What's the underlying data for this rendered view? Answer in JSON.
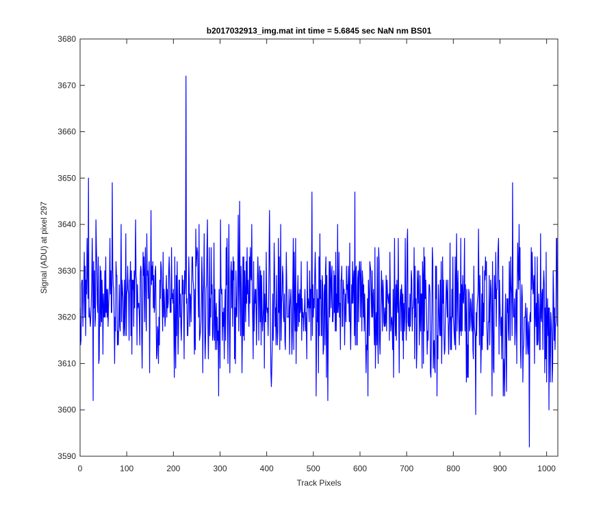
{
  "chart_data": {
    "type": "line",
    "title": "b2017032913_img.mat int time = 5.6845 sec  NaN nm BS01",
    "xlabel": "Track Pixels",
    "ylabel": "Signal (ADU) at pixel 297",
    "xlim": [
      0,
      1024
    ],
    "ylim": [
      3590,
      3680
    ],
    "x_ticks": [
      "0",
      "100",
      "200",
      "300",
      "400",
      "500",
      "600",
      "700",
      "800",
      "900",
      "1000"
    ],
    "y_ticks": [
      "3590",
      "3600",
      "3610",
      "3620",
      "3630",
      "3640",
      "3650",
      "3660",
      "3670",
      "3680"
    ],
    "grid": false,
    "line_color": "#0000ff",
    "series": [
      {
        "n_points": 1024,
        "baseline": 3625,
        "baseline_end": 3621,
        "noise_amplitude": 7,
        "seed": 297,
        "points": [
          [
            0,
            3622
          ],
          [
            2,
            3615
          ],
          [
            4,
            3628
          ],
          [
            6,
            3618
          ],
          [
            8,
            3627
          ],
          [
            10,
            3620
          ],
          [
            14,
            3625
          ],
          [
            18,
            3650
          ],
          [
            20,
            3622
          ],
          [
            22,
            3618
          ],
          [
            26,
            3637
          ],
          [
            28,
            3602
          ],
          [
            31,
            3630
          ],
          [
            34,
            3641
          ],
          [
            38,
            3621
          ],
          [
            41,
            3611
          ],
          [
            45,
            3630
          ],
          [
            50,
            3625
          ],
          [
            55,
            3633
          ],
          [
            60,
            3618
          ],
          [
            64,
            3637
          ],
          [
            69,
            3649
          ],
          [
            72,
            3626
          ],
          [
            77,
            3632
          ],
          [
            83,
            3620
          ],
          [
            88,
            3640
          ],
          [
            93,
            3616
          ],
          [
            100,
            3625
          ],
          [
            108,
            3632
          ],
          [
            115,
            3618
          ],
          [
            119,
            3641
          ],
          [
            125,
            3623
          ],
          [
            131,
            3630
          ],
          [
            138,
            3619
          ],
          [
            143,
            3638
          ],
          [
            150,
            3624
          ],
          [
            156,
            3632
          ],
          [
            163,
            3620
          ],
          [
            168,
            3610
          ],
          [
            175,
            3628
          ],
          [
            182,
            3618
          ],
          [
            190,
            3630
          ],
          [
            199,
            3623
          ],
          [
            205,
            3609
          ],
          [
            212,
            3628
          ],
          [
            218,
            3621
          ],
          [
            224,
            3630
          ],
          [
            227,
            3672
          ],
          [
            230,
            3616
          ],
          [
            236,
            3625
          ],
          [
            240,
            3633
          ],
          [
            245,
            3612
          ],
          [
            252,
            3634
          ],
          [
            258,
            3617
          ],
          [
            264,
            3625
          ],
          [
            272,
            3635
          ],
          [
            280,
            3620
          ],
          [
            287,
            3636
          ],
          [
            293,
            3613
          ],
          [
            297,
            3603
          ],
          [
            302,
            3627
          ],
          [
            308,
            3622
          ],
          [
            315,
            3637
          ],
          [
            321,
            3608
          ],
          [
            328,
            3633
          ],
          [
            336,
            3620
          ],
          [
            342,
            3645
          ],
          [
            350,
            3616
          ],
          [
            356,
            3632
          ],
          [
            362,
            3618
          ],
          [
            368,
            3640
          ],
          [
            374,
            3622
          ],
          [
            381,
            3633
          ],
          [
            388,
            3614
          ],
          [
            394,
            3630
          ],
          [
            400,
            3622
          ],
          [
            406,
            3643
          ],
          [
            410,
            3605
          ],
          [
            417,
            3629
          ],
          [
            424,
            3617
          ],
          [
            430,
            3640
          ],
          [
            436,
            3620
          ],
          [
            442,
            3634
          ],
          [
            449,
            3612
          ],
          [
            456,
            3628
          ],
          [
            462,
            3637
          ],
          [
            468,
            3618
          ],
          [
            474,
            3632
          ],
          [
            480,
            3620
          ],
          [
            486,
            3611
          ],
          [
            492,
            3630
          ],
          [
            497,
            3647
          ],
          [
            502,
            3622
          ],
          [
            506,
            3603
          ],
          [
            512,
            3633
          ],
          [
            518,
            3616
          ],
          [
            524,
            3627
          ],
          [
            531,
            3602
          ],
          [
            537,
            3630
          ],
          [
            545,
            3621
          ],
          [
            552,
            3640
          ],
          [
            558,
            3613
          ],
          [
            564,
            3628
          ],
          [
            570,
            3619
          ],
          [
            578,
            3636
          ],
          [
            585,
            3623
          ],
          [
            589,
            3647
          ],
          [
            594,
            3614
          ],
          [
            600,
            3629
          ],
          [
            607,
            3620
          ],
          [
            613,
            3608
          ],
          [
            617,
            3603
          ],
          [
            623,
            3630
          ],
          [
            630,
            3618
          ],
          [
            637,
            3633
          ],
          [
            643,
            3612
          ],
          [
            650,
            3626
          ],
          [
            657,
            3617
          ],
          [
            664,
            3634
          ],
          [
            670,
            3613
          ],
          [
            677,
            3627
          ],
          [
            684,
            3608
          ],
          [
            690,
            3625
          ],
          [
            697,
            3637
          ],
          [
            704,
            3618
          ],
          [
            710,
            3630
          ],
          [
            717,
            3611
          ],
          [
            724,
            3627
          ],
          [
            730,
            3617
          ],
          [
            737,
            3635
          ],
          [
            744,
            3612
          ],
          [
            750,
            3625
          ],
          [
            757,
            3609
          ],
          [
            764,
            3631
          ],
          [
            770,
            3618
          ],
          [
            777,
            3633
          ],
          [
            783,
            3620
          ],
          [
            790,
            3612
          ],
          [
            797,
            3626
          ],
          [
            803,
            3614
          ],
          [
            810,
            3630
          ],
          [
            817,
            3616
          ],
          [
            823,
            3627
          ],
          [
            830,
            3607
          ],
          [
            837,
            3624
          ],
          [
            843,
            3611
          ],
          [
            848,
            3599
          ],
          [
            853,
            3625
          ],
          [
            860,
            3614
          ],
          [
            867,
            3630
          ],
          [
            873,
            3613
          ],
          [
            880,
            3628
          ],
          [
            886,
            3609
          ],
          [
            893,
            3626
          ],
          [
            898,
            3612
          ],
          [
            903,
            3620
          ],
          [
            910,
            3603
          ],
          [
            917,
            3624
          ],
          [
            922,
            3615
          ],
          [
            927,
            3649
          ],
          [
            930,
            3620
          ],
          [
            936,
            3610
          ],
          [
            942,
            3628
          ],
          [
            949,
            3606
          ],
          [
            955,
            3623
          ],
          [
            960,
            3612
          ],
          [
            963,
            3592
          ],
          [
            968,
            3626
          ],
          [
            974,
            3610
          ],
          [
            980,
            3633
          ],
          [
            986,
            3613
          ],
          [
            991,
            3626
          ],
          [
            996,
            3608
          ],
          [
            1002,
            3624
          ],
          [
            1005,
            3600
          ],
          [
            1010,
            3619
          ],
          [
            1014,
            3630
          ],
          [
            1018,
            3613
          ],
          [
            1021,
            3637
          ],
          [
            1023,
            3618
          ]
        ]
      }
    ]
  }
}
